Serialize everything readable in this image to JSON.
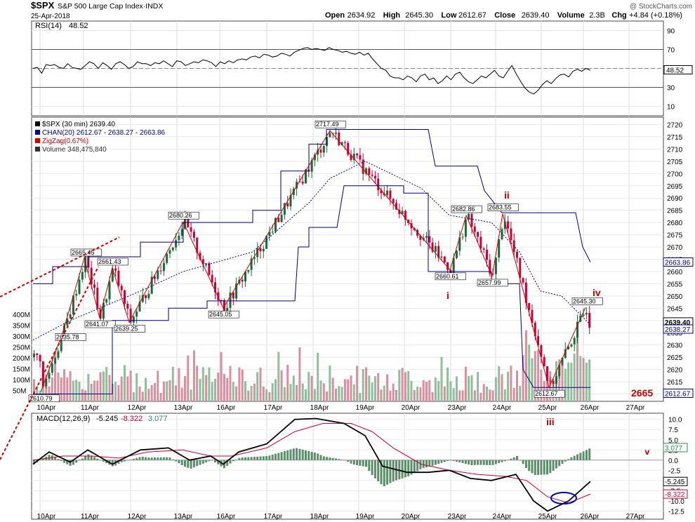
{
  "header": {
    "symbol": "$SPX",
    "name": "S&P 500 Large Cap Index·INDX",
    "date": "25-Apr-2018",
    "ohlc": [
      {
        "label": "Open",
        "value": "2634.92"
      },
      {
        "label": "High",
        "value": "2645.30"
      },
      {
        "label": "Low",
        "value": "2612.67"
      },
      {
        "label": "Close",
        "value": "2639.40"
      },
      {
        "label": "Volume",
        "value": "2.3B"
      },
      {
        "label": "Chg",
        "value": "+4.84 (+0.18%)"
      }
    ],
    "watermark": "@ StockCharts.com"
  },
  "rsi": {
    "label": "RSI(14)",
    "value": "48.52",
    "ticks": [
      90,
      70,
      50,
      30,
      10
    ],
    "overbought": 70,
    "oversold": 30,
    "current_tag": "48.52",
    "values": [
      50,
      51,
      45,
      54,
      53,
      54,
      51,
      50,
      55,
      51,
      50,
      49,
      53,
      57,
      55,
      50,
      56,
      53,
      49,
      55,
      57,
      54,
      50,
      52,
      57,
      55,
      55,
      53,
      56,
      55,
      58,
      55,
      52,
      58,
      57,
      53,
      55,
      57,
      56,
      59,
      58,
      56,
      52,
      57,
      55,
      58,
      56,
      59,
      60,
      59,
      62,
      63,
      61,
      65,
      64,
      62,
      63,
      66,
      65,
      63,
      67,
      69,
      71,
      72,
      70,
      71,
      70,
      69,
      72,
      70,
      69,
      67,
      68,
      66,
      65,
      67,
      64,
      66,
      60,
      55,
      50,
      48,
      42,
      40,
      40,
      38,
      42,
      40,
      36,
      42,
      44,
      38,
      40,
      34,
      37,
      42,
      38,
      44,
      46,
      40,
      36,
      34,
      38,
      42,
      40,
      44,
      48,
      42,
      40,
      47,
      53,
      44,
      36,
      29,
      25,
      23,
      27,
      33,
      37,
      34,
      39,
      43,
      44,
      41,
      47,
      49,
      47,
      50,
      48
    ]
  },
  "price": {
    "legend": [
      {
        "text": "$SPX (30 min) 2639.40",
        "color": "#000000"
      },
      {
        "text": "CHAN(20) 2612.67 - 2638.27 - 2663.86",
        "color": "#000080"
      },
      {
        "text": "ZigZag(0.67%)",
        "color": "#cc0000"
      },
      {
        "text": "Volume 348,475,840",
        "color": "#333333"
      }
    ],
    "y_ticks": [
      2610,
      2615,
      2620,
      2625,
      2630,
      2635,
      2640,
      2645,
      2650,
      2655,
      2660,
      2665,
      2670,
      2675,
      2680,
      2685,
      2690,
      2695,
      2700,
      2705,
      2710,
      2715,
      2720
    ],
    "ylim": [
      2607,
      2723
    ],
    "volume_ticks": [
      "400M",
      "350M",
      "300M",
      "250M",
      "200M",
      "150M",
      "100M",
      "50M"
    ],
    "zigzag_labels": [
      "2610.79",
      "2635.78",
      "2665.45",
      "2641.07",
      "2661.43",
      "2639.25",
      "2680.26",
      "2645.05",
      "2717.49",
      "2660.61",
      "2682.86",
      "2657.99",
      "2683.55",
      "2612.67",
      "2645.30"
    ],
    "wave_labels": [
      "i",
      "ii",
      "iii",
      "iv",
      "v"
    ],
    "target_label": "2665",
    "price_tags": [
      {
        "text": "2663.86",
        "bg": "#ffffff",
        "fg": "#000080"
      },
      {
        "text": "2639.40",
        "bg": "#ffffff",
        "fg": "#000000"
      },
      {
        "text": "2638.27",
        "bg": "#ffffff",
        "fg": "#000080"
      },
      {
        "text": "2612.67",
        "bg": "#ffffff",
        "fg": "#000080"
      }
    ],
    "x_labels": [
      "10Apr",
      "11Apr",
      "12Apr",
      "13Apr",
      "16Apr",
      "17Apr",
      "18Apr",
      "19Apr",
      "20Apr",
      "23Apr",
      "24Apr",
      "25Apr",
      "26Apr",
      "27Apr"
    ]
  },
  "macd": {
    "label": "MACD(12,26,9)",
    "values_text": [
      "-5.245",
      "-8.322",
      "3.077"
    ],
    "ticks": [
      "10.0",
      "7.5",
      "5.0",
      "2.5",
      "0.0",
      "-2.5",
      "-5.0",
      "-7.5",
      "-10.0",
      "-12.5"
    ],
    "tags": [
      {
        "text": "3.077",
        "color": "#2e8b57"
      },
      {
        "text": "-5.245",
        "color": "#000000"
      },
      {
        "text": "-8.322",
        "color": "#cc0033"
      }
    ]
  },
  "chart_data": {
    "type": "line",
    "title": "$SPX S&P 500 Large Cap Index·INDX",
    "xlabel": "",
    "ylabel": "",
    "x": [
      "10Apr",
      "11Apr",
      "12Apr",
      "13Apr",
      "16Apr",
      "17Apr",
      "18Apr",
      "19Apr",
      "20Apr",
      "23Apr",
      "24Apr",
      "25Apr"
    ],
    "zigzag_pivots": [
      {
        "x": "10Apr",
        "y": 2610.79
      },
      {
        "x": "10Apr",
        "y": 2635.78
      },
      {
        "x": "11Apr",
        "y": 2665.45
      },
      {
        "x": "11Apr",
        "y": 2641.07
      },
      {
        "x": "11Apr",
        "y": 2661.43
      },
      {
        "x": "12Apr",
        "y": 2639.25
      },
      {
        "x": "13Apr",
        "y": 2680.26
      },
      {
        "x": "16Apr",
        "y": 2645.05
      },
      {
        "x": "18Apr",
        "y": 2717.49
      },
      {
        "x": "23Apr",
        "y": 2660.61
      },
      {
        "x": "23Apr",
        "y": 2682.86
      },
      {
        "x": "24Apr",
        "y": 2657.99
      },
      {
        "x": "24Apr",
        "y": 2683.55
      },
      {
        "x": "25Apr",
        "y": 2612.67
      },
      {
        "x": "25Apr",
        "y": 2645.3
      }
    ],
    "ylim": [
      2607,
      2723
    ],
    "colors": {
      "up": "#2e8b57",
      "down": "#cc0033",
      "channel": "#000080",
      "zigzag": "#cc0000"
    }
  }
}
